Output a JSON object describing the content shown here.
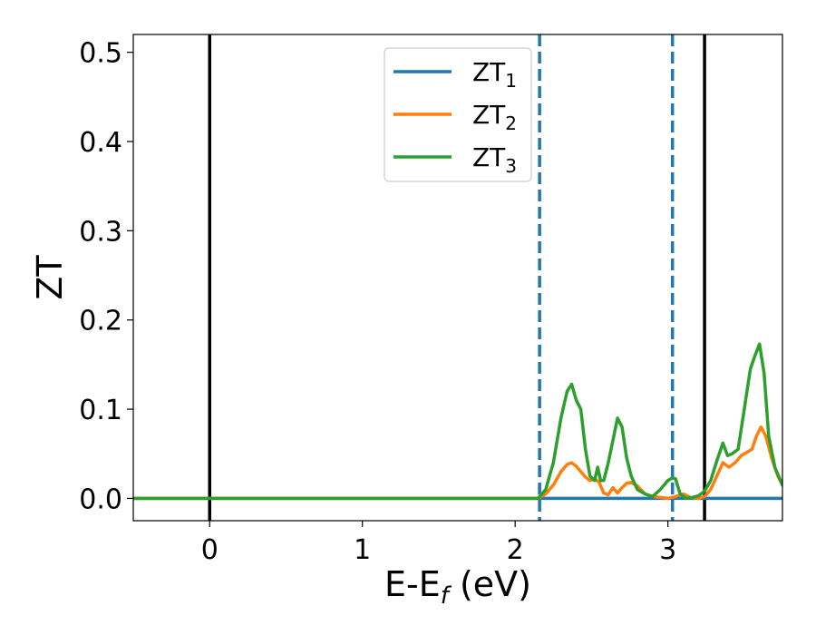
{
  "chart_data": {
    "type": "line",
    "xlabel": {
      "main": "E-E",
      "sub": "f",
      "unit": " (eV)"
    },
    "ylabel": "ZT",
    "xlim": [
      -0.5,
      3.75
    ],
    "ylim": [
      -0.025,
      0.52
    ],
    "x_ticks": [
      0,
      1,
      2,
      3
    ],
    "x_tick_labels": [
      "0",
      "1",
      "2",
      "3"
    ],
    "y_ticks": [
      0.0,
      0.1,
      0.2,
      0.3,
      0.4,
      0.5
    ],
    "y_tick_labels": [
      "0.0",
      "0.1",
      "0.2",
      "0.3",
      "0.4",
      "0.5"
    ],
    "grid": false,
    "legend_position": "top-center",
    "vlines": [
      {
        "x": 0.0,
        "style": "solid",
        "color": "#000000"
      },
      {
        "x": 2.16,
        "style": "dashed",
        "color": "#1f77b4"
      },
      {
        "x": 3.03,
        "style": "dashed",
        "color": "#1f77b4"
      },
      {
        "x": 3.24,
        "style": "solid",
        "color": "#000000"
      }
    ],
    "series": [
      {
        "name": "ZT",
        "name_sub": "1",
        "color": "#1f77b4",
        "x": [
          -0.5,
          3.75
        ],
        "y": [
          0.0,
          0.0
        ]
      },
      {
        "name": "ZT",
        "name_sub": "2",
        "color": "#ff7f0e",
        "x": [
          -0.5,
          2.15,
          2.2,
          2.25,
          2.3,
          2.34,
          2.37,
          2.4,
          2.43,
          2.46,
          2.49,
          2.52,
          2.55,
          2.58,
          2.61,
          2.64,
          2.67,
          2.7,
          2.73,
          2.76,
          2.8,
          2.85,
          2.9,
          2.95,
          3.0,
          3.05,
          3.1,
          3.15,
          3.2,
          3.24,
          3.28,
          3.32,
          3.36,
          3.4,
          3.44,
          3.48,
          3.52,
          3.55,
          3.58,
          3.61,
          3.64,
          3.68,
          3.72,
          3.75
        ],
        "y": [
          0.0,
          0.0,
          0.005,
          0.015,
          0.03,
          0.038,
          0.04,
          0.036,
          0.03,
          0.024,
          0.02,
          0.022,
          0.018,
          0.006,
          0.004,
          0.012,
          0.006,
          0.012,
          0.017,
          0.018,
          0.014,
          0.005,
          0.002,
          0.001,
          0.0,
          0.002,
          0.005,
          0.001,
          0.0,
          0.002,
          0.01,
          0.025,
          0.04,
          0.035,
          0.04,
          0.048,
          0.052,
          0.055,
          0.07,
          0.08,
          0.07,
          0.045,
          0.025,
          0.015
        ]
      },
      {
        "name": "ZT",
        "name_sub": "3",
        "color": "#2ca02c",
        "x": [
          -0.5,
          2.15,
          2.2,
          2.25,
          2.3,
          2.34,
          2.37,
          2.4,
          2.43,
          2.46,
          2.49,
          2.52,
          2.54,
          2.56,
          2.58,
          2.61,
          2.64,
          2.67,
          2.7,
          2.73,
          2.76,
          2.8,
          2.85,
          2.9,
          2.95,
          3.0,
          3.03,
          3.05,
          3.08,
          3.12,
          3.16,
          3.2,
          3.24,
          3.28,
          3.32,
          3.36,
          3.39,
          3.42,
          3.46,
          3.5,
          3.54,
          3.57,
          3.6,
          3.63,
          3.66,
          3.7,
          3.75
        ],
        "y": [
          0.0,
          0.0,
          0.01,
          0.04,
          0.09,
          0.12,
          0.128,
          0.11,
          0.1,
          0.055,
          0.025,
          0.02,
          0.035,
          0.02,
          0.02,
          0.04,
          0.065,
          0.09,
          0.08,
          0.045,
          0.025,
          0.01,
          0.005,
          0.002,
          0.01,
          0.02,
          0.023,
          0.022,
          0.005,
          0.0,
          0.001,
          0.003,
          0.008,
          0.02,
          0.042,
          0.062,
          0.048,
          0.05,
          0.055,
          0.1,
          0.145,
          0.16,
          0.173,
          0.14,
          0.07,
          0.035,
          0.015
        ]
      }
    ]
  }
}
